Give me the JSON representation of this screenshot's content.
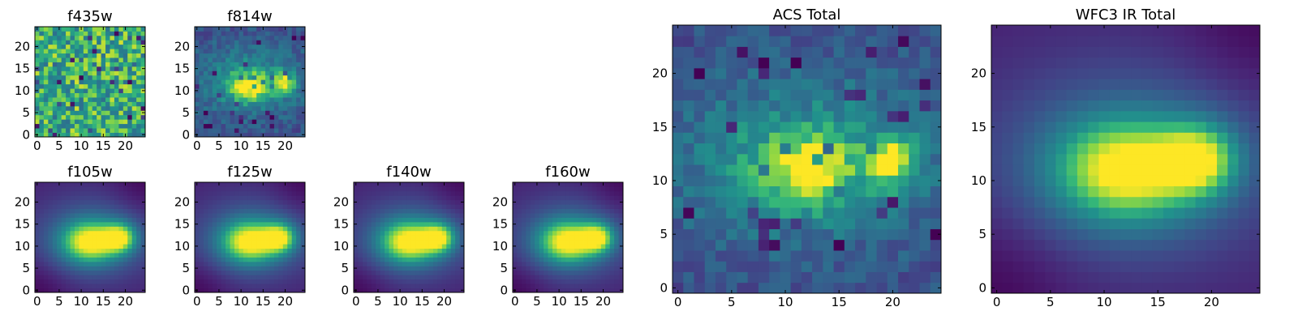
{
  "figure": {
    "colormap": "viridis",
    "grid": false,
    "legend": "none"
  },
  "chart_data": [
    {
      "type": "heatmap",
      "title": "f435w",
      "xlim": [
        0,
        24
      ],
      "ylim": [
        0,
        24
      ],
      "xticks": [
        "0",
        "5",
        "10",
        "15",
        "20"
      ],
      "yticks": [
        "0",
        "5",
        "10",
        "15",
        "20"
      ],
      "pattern": "noise"
    },
    {
      "type": "heatmap",
      "title": "f814w",
      "xlim": [
        0,
        24
      ],
      "ylim": [
        0,
        24
      ],
      "xticks": [
        "0",
        "5",
        "10",
        "15",
        "20"
      ],
      "yticks": [
        "0",
        "5",
        "10",
        "15",
        "20"
      ],
      "pattern": "two-peak noisy",
      "peaks": [
        {
          "x": 12,
          "y": 11
        },
        {
          "x": 20,
          "y": 12
        }
      ]
    },
    {
      "type": "heatmap",
      "title": "f105w",
      "xlim": [
        0,
        24
      ],
      "ylim": [
        0,
        24
      ],
      "xticks": [
        "0",
        "5",
        "10",
        "15",
        "20"
      ],
      "yticks": [
        "0",
        "5",
        "10",
        "15",
        "20"
      ],
      "pattern": "two-peak smooth",
      "peaks": [
        {
          "x": 12,
          "y": 11
        },
        {
          "x": 19,
          "y": 12
        }
      ]
    },
    {
      "type": "heatmap",
      "title": "f125w",
      "xlim": [
        0,
        24
      ],
      "ylim": [
        0,
        24
      ],
      "xticks": [
        "0",
        "5",
        "10",
        "15",
        "20"
      ],
      "yticks": [
        "0",
        "5",
        "10",
        "15",
        "20"
      ],
      "pattern": "two-peak smooth",
      "peaks": [
        {
          "x": 12,
          "y": 11
        },
        {
          "x": 19,
          "y": 12
        }
      ]
    },
    {
      "type": "heatmap",
      "title": "f140w",
      "xlim": [
        0,
        24
      ],
      "ylim": [
        0,
        24
      ],
      "xticks": [
        "0",
        "5",
        "10",
        "15",
        "20"
      ],
      "yticks": [
        "0",
        "5",
        "10",
        "15",
        "20"
      ],
      "pattern": "two-peak smooth",
      "peaks": [
        {
          "x": 12,
          "y": 11
        },
        {
          "x": 19,
          "y": 12
        }
      ]
    },
    {
      "type": "heatmap",
      "title": "f160w",
      "xlim": [
        0,
        24
      ],
      "ylim": [
        0,
        24
      ],
      "xticks": [
        "0",
        "5",
        "10",
        "15",
        "20"
      ],
      "yticks": [
        "0",
        "5",
        "10",
        "15",
        "20"
      ],
      "pattern": "two-peak smooth",
      "peaks": [
        {
          "x": 12,
          "y": 11
        },
        {
          "x": 19,
          "y": 12
        }
      ]
    },
    {
      "type": "heatmap",
      "title": "ACS Total",
      "xlim": [
        0,
        24
      ],
      "ylim": [
        0,
        24
      ],
      "xticks": [
        "0",
        "5",
        "10",
        "15",
        "20"
      ],
      "yticks": [
        "0",
        "5",
        "10",
        "15",
        "20"
      ],
      "pattern": "two-peak noisy",
      "peaks": [
        {
          "x": 12,
          "y": 11
        },
        {
          "x": 20,
          "y": 12
        }
      ]
    },
    {
      "type": "heatmap",
      "title": "WFC3 IR Total",
      "xlim": [
        0,
        24
      ],
      "ylim": [
        0,
        24
      ],
      "xticks": [
        "0",
        "5",
        "10",
        "15",
        "20"
      ],
      "yticks": [
        "0",
        "5",
        "10",
        "15",
        "20"
      ],
      "pattern": "two-peak smooth",
      "peaks": [
        {
          "x": 12,
          "y": 11
        },
        {
          "x": 19,
          "y": 12
        }
      ]
    }
  ]
}
